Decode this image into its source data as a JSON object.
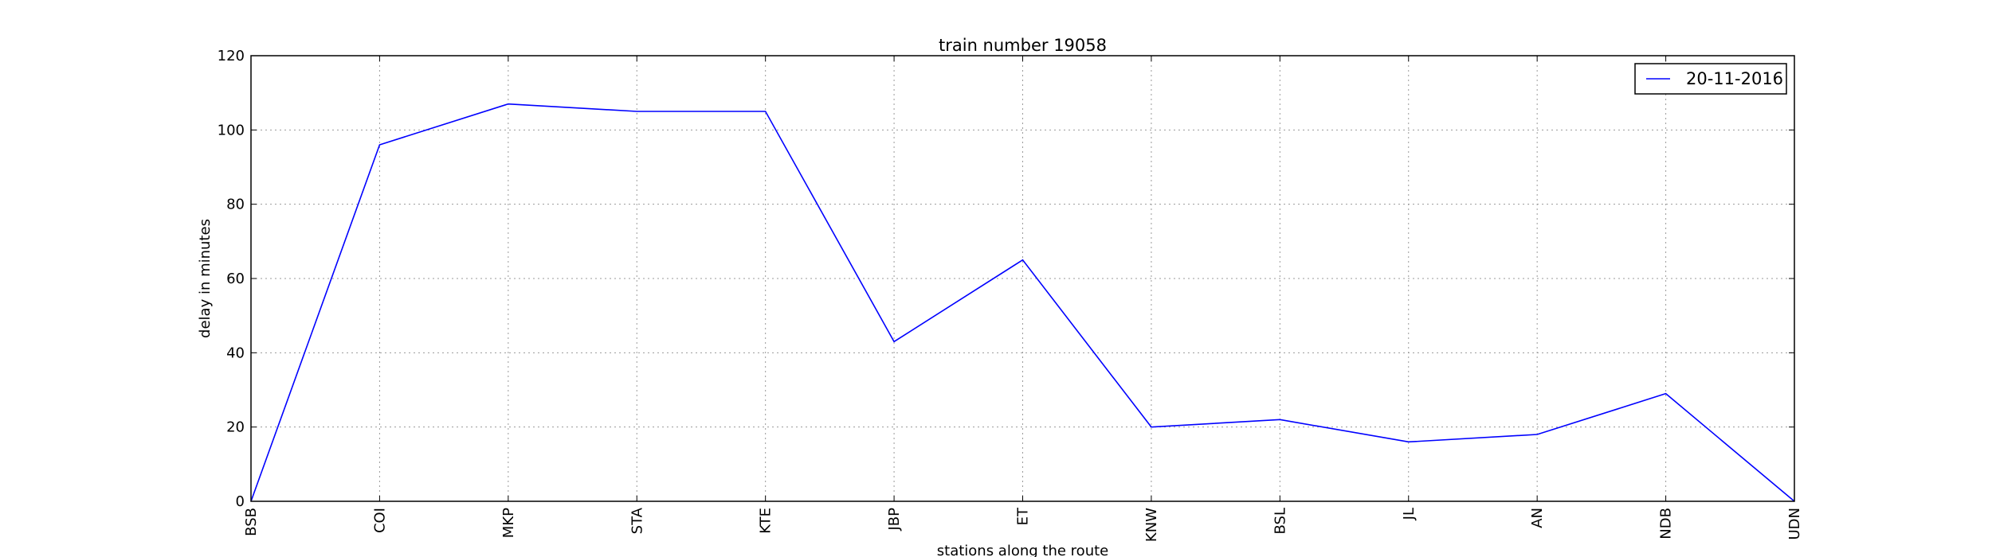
{
  "chart_data": {
    "type": "line",
    "title": "train number 19058",
    "xlabel": "stations along the route",
    "ylabel": "delay in minutes",
    "categories": [
      "BSB",
      "COI",
      "MKP",
      "STA",
      "KTE",
      "JBP",
      "ET",
      "KNW",
      "BSL",
      "JL",
      "AN",
      "NDB",
      "UDN"
    ],
    "series": [
      {
        "name": "20-11-2016",
        "color": "#0000ff",
        "values": [
          0,
          96,
          107,
          105,
          105,
          43,
          65,
          20,
          22,
          16,
          18,
          29,
          0
        ]
      }
    ],
    "ylim": [
      0,
      120
    ],
    "yticks": [
      0,
      20,
      40,
      60,
      80,
      100,
      120
    ],
    "grid": true,
    "legend_position": "top-right"
  }
}
